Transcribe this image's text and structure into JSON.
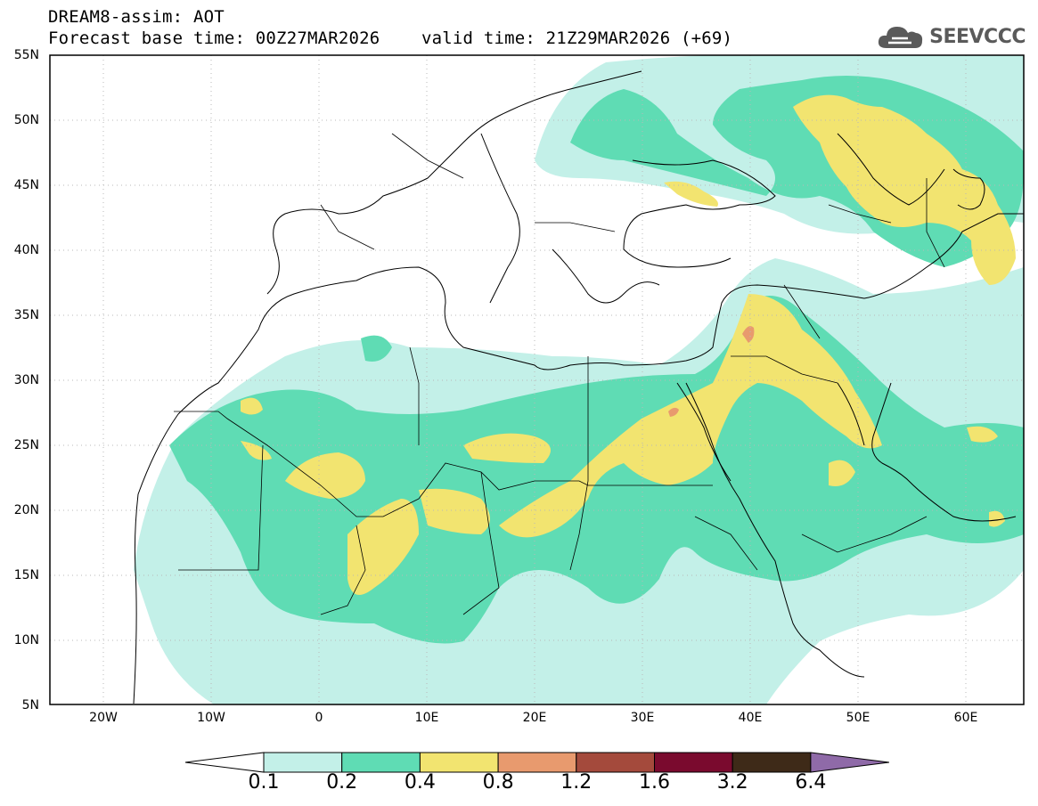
{
  "header": {
    "line1": "DREAM8-assim: AOT",
    "line2": "Forecast base time: 00Z27MAR2026    valid time: 21Z29MAR2026 (+69)"
  },
  "brand": {
    "name": "SEEVCCC",
    "icon": "cloud-logo-icon"
  },
  "map": {
    "lat_labels": [
      "55N",
      "50N",
      "45N",
      "40N",
      "35N",
      "30N",
      "25N",
      "20N",
      "15N",
      "10N",
      "5N"
    ],
    "lon_labels": [
      "20W",
      "10W",
      "0",
      "10E",
      "20E",
      "30E",
      "40E",
      "50E",
      "60E"
    ],
    "grid": true
  },
  "colorbar": {
    "labels": [
      "0.1",
      "0.2",
      "0.4",
      "0.8",
      "1.2",
      "1.6",
      "3.2",
      "6.4"
    ],
    "colors": [
      "#ffffff",
      "#c3f0e8",
      "#5fdcb4",
      "#f2e470",
      "#e89a6e",
      "#a44a3c",
      "#7a0a2e",
      "#3e2a18",
      "#8f6aa8"
    ]
  }
}
